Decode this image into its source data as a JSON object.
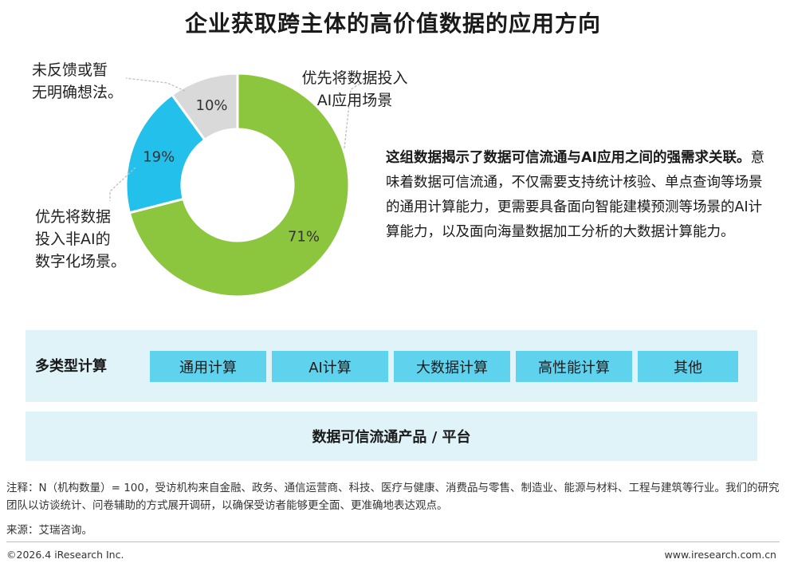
{
  "title": "企业获取跨主体的高价值数据的应用方向",
  "chart_data": {
    "type": "pie",
    "categories": [
      "优先将数据投入AI应用场景",
      "优先将数据投入非AI的数字化场景。",
      "未反馈或暂无明确想法。"
    ],
    "values": [
      71,
      19,
      10
    ],
    "value_labels": [
      "71%",
      "19%",
      "10%"
    ],
    "colors": [
      "#8cc63f",
      "#22c0ea",
      "#d9d9d9"
    ]
  },
  "callouts": {
    "ai": "优先将数据投入\nAI应用场景",
    "non_ai": "优先将数据\n投入非AI的\n数字化场景。",
    "none": "未反馈或暂\n无明确想法。"
  },
  "description": {
    "bold": "这组数据揭示了数据可信流通与AI应用之间的强需求关联。",
    "text": "意味着数据可信流通，不仅需要支持统计核验、单点查询等场景的通用计算能力，更需要具备面向智能建模预测等场景的AI计算能力，以及面向海量数据加工分析的大数据计算能力。"
  },
  "compute": {
    "label": "多类型计算",
    "items": [
      "通用计算",
      "AI计算",
      "大数据计算",
      "高性能计算",
      "其他"
    ]
  },
  "platform": "数据可信流通产品 / 平台",
  "note": "注释：N（机构数量）= 100，受访机构来自金融、政务、通信运营商、科技、医疗与健康、消费品与零售、制造业、能源与材料、工程与建筑等行业。我们的研究团队以访谈统计、问卷辅助的方式展开调研，以确保受访者能够更全面、更准确地表达观点。",
  "source": "来源：艾瑞咨询。",
  "footer": {
    "copyright": "©2026.4 iResearch Inc.",
    "website": "www.iresearch.com.cn"
  }
}
